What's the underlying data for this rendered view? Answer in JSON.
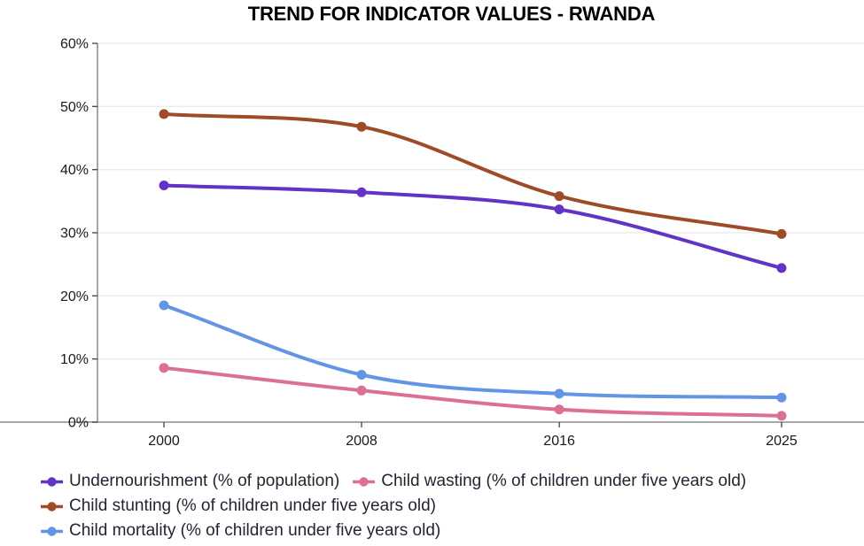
{
  "title": "TREND FOR INDICATOR VALUES - RWANDA",
  "chart_data": {
    "type": "line",
    "x": [
      2000,
      2008,
      2016,
      2025
    ],
    "x_tick_labels": [
      "2000",
      "2008",
      "2016",
      "2025"
    ],
    "series": [
      {
        "name": "Undernourishment (% of population)",
        "color": "#6233C5",
        "values": [
          37.5,
          36.4,
          33.7,
          24.4
        ]
      },
      {
        "name": "Child wasting (% of children under five years old)",
        "color": "#DB7093",
        "values": [
          8.6,
          5.0,
          2.0,
          1.0
        ]
      },
      {
        "name": "Child stunting (% of children under five years old)",
        "color": "#9E4B28",
        "values": [
          48.8,
          46.8,
          35.8,
          29.8
        ]
      },
      {
        "name": "Child mortality (% of children under five years old)",
        "color": "#6495E5",
        "values": [
          18.5,
          7.5,
          4.5,
          3.9
        ]
      }
    ],
    "ylim": [
      0,
      60
    ],
    "y_tick_values": [
      0,
      10,
      20,
      30,
      40,
      50,
      60
    ],
    "y_tick_labels": [
      "0%",
      "10%",
      "20%",
      "30%",
      "40%",
      "50%",
      "60%"
    ],
    "grid": "horizontal",
    "smooth": true,
    "legend_position": "bottom"
  },
  "legend": {
    "rows": [
      [
        0,
        1
      ],
      [
        2
      ],
      [
        3
      ]
    ]
  },
  "style": {
    "gridline_color": "#ebebeb",
    "axis_color": "#8a8a8a",
    "tick_color": "#404040",
    "label_color": "#1a1a1a"
  }
}
